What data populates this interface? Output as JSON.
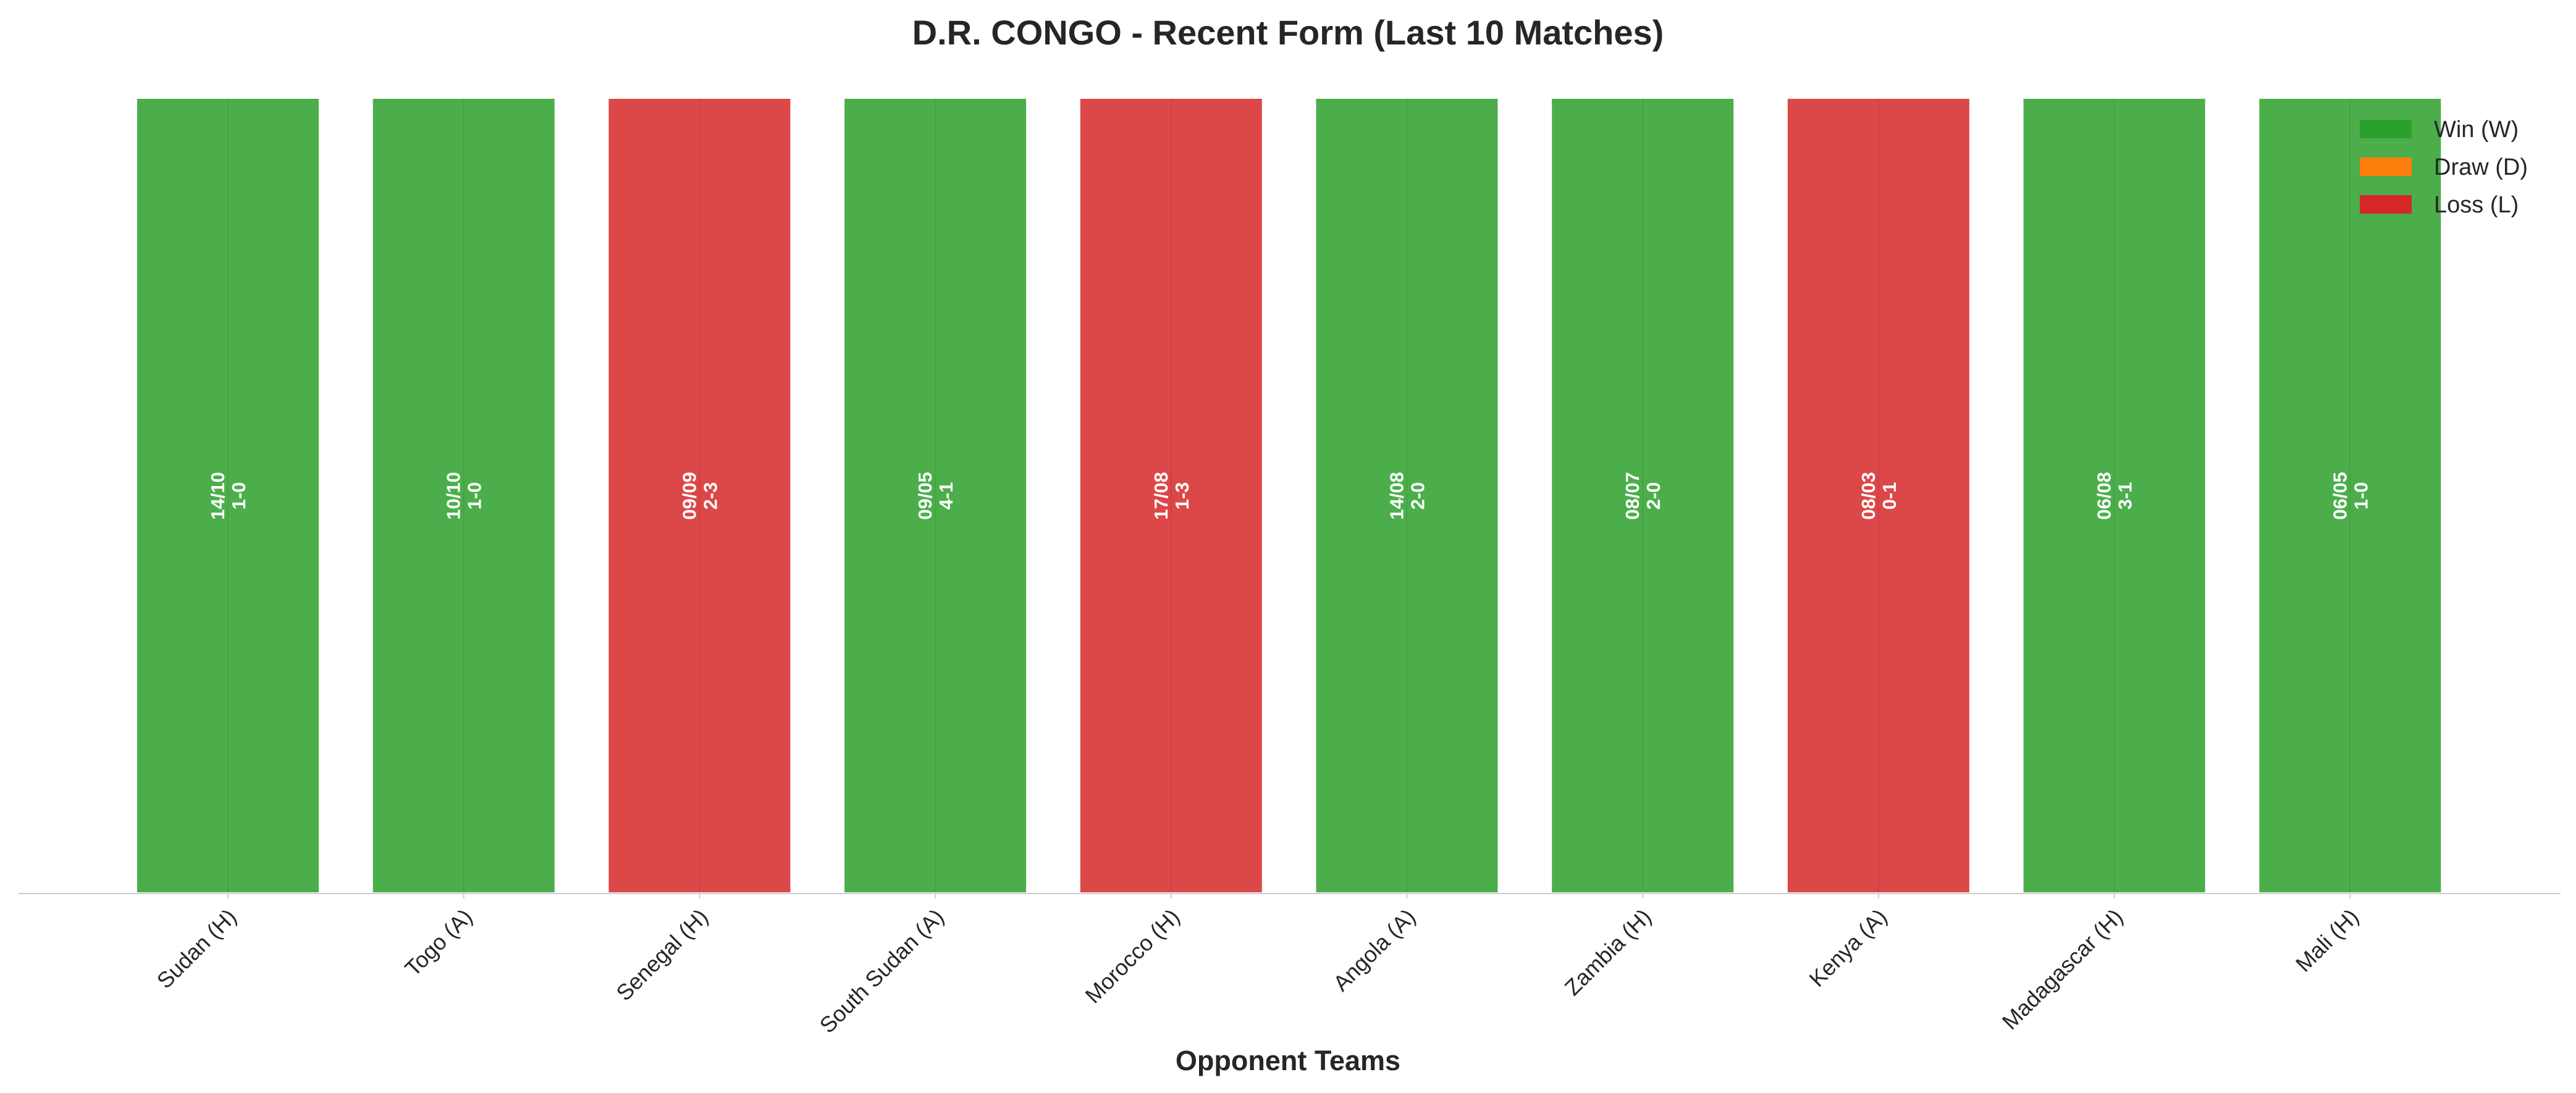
{
  "chart_data": {
    "type": "bar",
    "title": "D.R. CONGO - Recent Form (Last 10 Matches)",
    "xlabel": "Opponent Teams",
    "ylabel": "",
    "grid": false,
    "legend_position": "top-right",
    "categories": [
      "Sudan (H)",
      "Togo (A)",
      "Senegal (H)",
      "South Sudan (A)",
      "Morocco (H)",
      "Angola (A)",
      "Zambia (H)",
      "Kenya (A)",
      "Madagascar (H)",
      "Mali (H)"
    ],
    "values": [
      1,
      1,
      1,
      1,
      1,
      1,
      1,
      1,
      1,
      1
    ],
    "ylim": [
      0,
      1
    ],
    "results": [
      "W",
      "W",
      "L",
      "W",
      "L",
      "W",
      "W",
      "L",
      "W",
      "W"
    ],
    "dates": [
      "14/10",
      "10/10",
      "09/09",
      "09/05",
      "17/08",
      "14/08",
      "08/07",
      "08/03",
      "06/08",
      "06/05"
    ],
    "scores": [
      "1-0",
      "1-0",
      "2-3",
      "4-1",
      "1-3",
      "2-0",
      "2-0",
      "0-1",
      "3-1",
      "1-0"
    ],
    "legend": [
      {
        "key": "W",
        "label": "Win (W)",
        "color": "#2ca02c"
      },
      {
        "key": "D",
        "label": "Draw (D)",
        "color": "#ff7f0e"
      },
      {
        "key": "L",
        "label": "Loss (L)",
        "color": "#d62728"
      }
    ]
  }
}
